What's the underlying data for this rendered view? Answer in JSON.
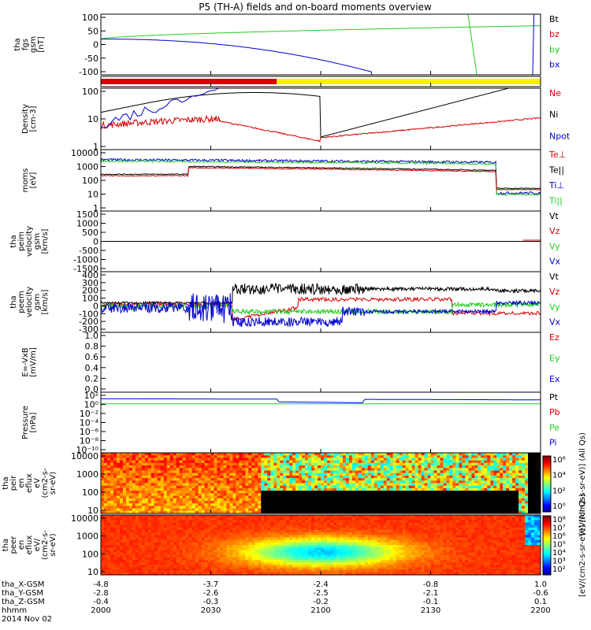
{
  "title": "P5 (TH-A) fields and on-board moments overview",
  "colors": {
    "black": "#000000",
    "red": "#d40000",
    "green": "#22cc22",
    "blue": "#0000cc",
    "yellow": "#ffee00"
  },
  "chart_data": {
    "type": "line",
    "time_axis": {
      "ticks": [
        "2000",
        "2030",
        "2100",
        "2130",
        "2200"
      ],
      "rows": [
        {
          "label": "tha_X-GSM",
          "values": [
            "-4.8",
            "-3.7",
            "-2.4",
            "-0.8",
            "1.0"
          ]
        },
        {
          "label": "tha_Y-GSM",
          "values": [
            "-2.8",
            "-2.6",
            "-2.5",
            "-2.1",
            "-0.6"
          ]
        },
        {
          "label": "tha_Z-GSM",
          "values": [
            "-0.4",
            "-0.3",
            "-0.2",
            "-0.1",
            "0.1"
          ]
        },
        {
          "label": "hhmm",
          "values": [
            "2000",
            "2030",
            "2100",
            "2130",
            "2200"
          ]
        }
      ],
      "date": "2014 Nov 02"
    },
    "panels": [
      {
        "id": "fgs",
        "ylabel": [
          "tha",
          "fgs",
          "gsm",
          "[nT]"
        ],
        "yticks": [
          "100",
          "50",
          "0",
          "-50",
          "-100"
        ],
        "ylim": [
          -120,
          100
        ],
        "legend": [
          {
            "name": "Bt",
            "color": "black"
          },
          {
            "name": "bz",
            "color": "red"
          },
          {
            "name": "by",
            "color": "green"
          },
          {
            "name": "bx",
            "color": "blue"
          }
        ]
      },
      {
        "id": "mode-bar",
        "ylabel": [],
        "yticks": [],
        "segments": [
          {
            "x0": 0,
            "x1": 0.4,
            "color": "red"
          },
          {
            "x0": 0.4,
            "x1": 1,
            "color": "yellow"
          }
        ]
      },
      {
        "id": "density",
        "ylabel": [
          "Density",
          "[cm-3]"
        ],
        "yticks": [
          "100",
          "10",
          "1"
        ],
        "log": true,
        "legend": [
          {
            "name": "Ne",
            "color": "red"
          },
          {
            "name": "Ni",
            "color": "black"
          },
          {
            "name": "Npot",
            "color": "blue"
          }
        ]
      },
      {
        "id": "temp",
        "ylabel": [
          "moms",
          "[eV]"
        ],
        "yticks": [
          "10000",
          "1000",
          "100",
          "10",
          "1"
        ],
        "log": true,
        "legend": [
          {
            "name": "Te⊥",
            "color": "red"
          },
          {
            "name": "Te||",
            "color": "black"
          },
          {
            "name": "Ti⊥",
            "color": "blue"
          },
          {
            "name": "Ti||",
            "color": "green"
          }
        ]
      },
      {
        "id": "peim-vel",
        "ylabel": [
          "tha",
          "peim",
          "velocity",
          "gsm",
          "[km/s]"
        ],
        "yticks": [
          "1500",
          "1000",
          "500",
          "0",
          "-500",
          "-1000",
          "-1500"
        ],
        "ylim": [
          -1500,
          1500
        ],
        "legend": [
          {
            "name": "Vt",
            "color": "black"
          },
          {
            "name": "Vz",
            "color": "red"
          },
          {
            "name": "Vy",
            "color": "green"
          },
          {
            "name": "Vx",
            "color": "blue"
          }
        ]
      },
      {
        "id": "peem-vel",
        "ylabel": [
          "tha",
          "peem",
          "velocity",
          "gsm",
          "[km/s]"
        ],
        "yticks": [
          "400",
          "300",
          "200",
          "100",
          "0",
          "-100",
          "-200",
          "-300"
        ],
        "ylim": [
          -300,
          400
        ],
        "legend": [
          {
            "name": "Vt",
            "color": "black"
          },
          {
            "name": "Vz",
            "color": "red"
          },
          {
            "name": "Vy",
            "color": "green"
          },
          {
            "name": "Vx",
            "color": "blue"
          }
        ]
      },
      {
        "id": "efield",
        "ylabel": [
          "E=-VxB",
          "[mV/m]"
        ],
        "yticks": [
          "1.0",
          "0.8",
          "0.6",
          "0.4",
          "0.2",
          "0.0"
        ],
        "ylim": [
          0,
          1
        ],
        "legend": [
          {
            "name": "Ez",
            "color": "red"
          },
          {
            "name": "Ey",
            "color": "green"
          },
          {
            "name": "Ex",
            "color": "blue"
          }
        ]
      },
      {
        "id": "pressure",
        "ylabel": [
          "Pressure",
          "[nPa]"
        ],
        "yticks": [
          "10²",
          "10⁰",
          "10⁻²",
          "10⁻⁴",
          "10⁻⁶",
          "10⁻⁸",
          "10⁻¹⁰"
        ],
        "log": true,
        "legend": [
          {
            "name": "Pt",
            "color": "black"
          },
          {
            "name": "Pb",
            "color": "red"
          },
          {
            "name": "Pe",
            "color": "green"
          },
          {
            "name": "Pi",
            "color": "blue"
          }
        ]
      },
      {
        "id": "peir-spec",
        "type": "heatmap",
        "ylabel": [
          "tha",
          "peir",
          "en",
          "eflux",
          "eV",
          "(cm2-s-",
          "sr-eV)"
        ],
        "yticks": [
          "10000",
          "1000",
          "100",
          "10"
        ],
        "colorbar": {
          "labels": [
            "10⁶",
            "10⁴",
            "10²",
            "10⁰"
          ],
          "label": "[eV/(cm2-s-sr-eV)] (All Qs)"
        }
      },
      {
        "id": "peer-spec",
        "type": "heatmap",
        "ylabel": [
          "tha",
          "peer",
          "en",
          "eflux",
          "eV/",
          "(cm2-s-",
          "sr-eV)"
        ],
        "yticks": [
          "10000",
          "1000",
          "100",
          "10"
        ],
        "colorbar": {
          "labels": [
            "10⁸",
            "10⁷",
            "10⁶",
            "10⁵",
            "10⁴",
            "10³",
            "10²"
          ],
          "label": "[eV/(cm2-s-sr-eV)] (All Qs)"
        }
      }
    ]
  }
}
